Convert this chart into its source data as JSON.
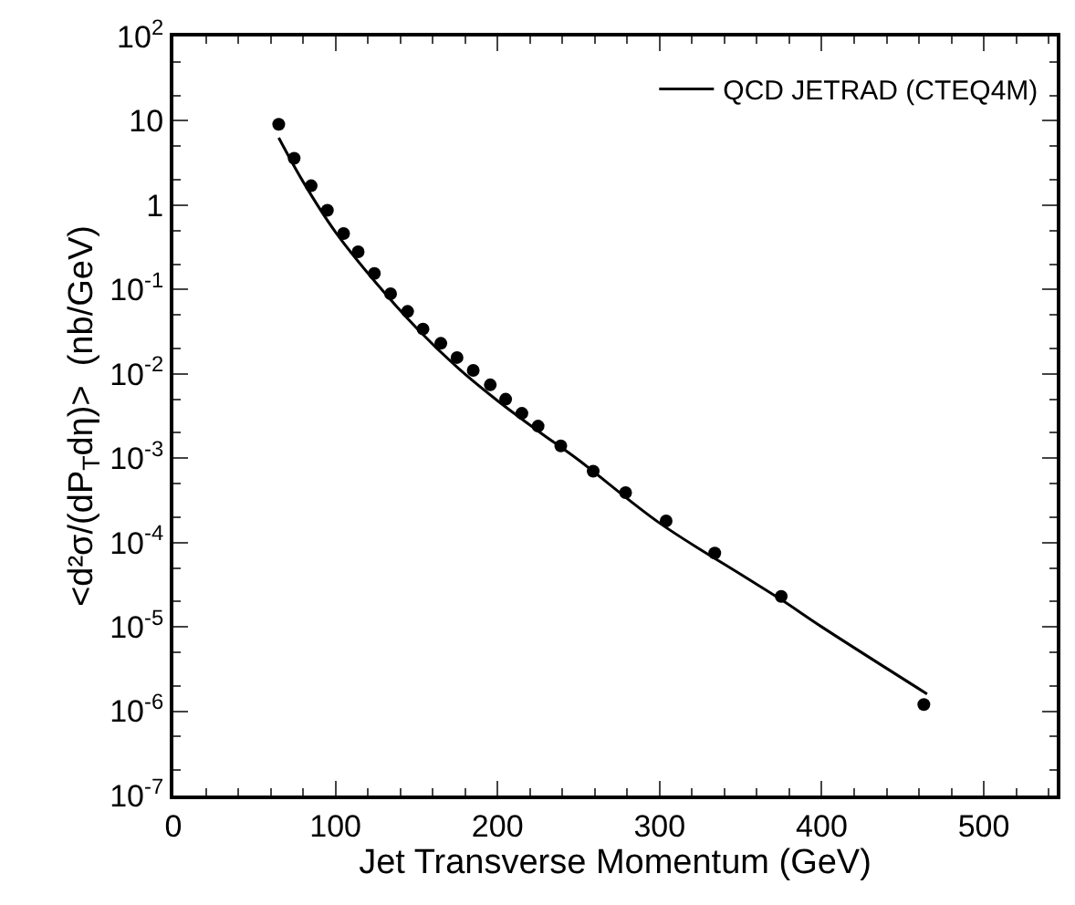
{
  "chart_data": {
    "type": "scatter",
    "xlabel": "Jet Transverse Momentum (GeV)",
    "ylabel": "<d²σ/(dP$_{T}$dη)>  (nb/GeV)",
    "series": [
      {
        "color": "#000000",
        "marker": "circle",
        "x": [
          65,
          74.5,
          85,
          95,
          105,
          114,
          124,
          134,
          144.5,
          154,
          165,
          175,
          185,
          195.5,
          205,
          215,
          225,
          239,
          259,
          279,
          304,
          334,
          375,
          463
        ],
        "values": [
          9.1,
          3.6,
          1.7,
          0.87,
          0.46,
          0.28,
          0.155,
          0.089,
          0.055,
          0.034,
          0.023,
          0.0156,
          0.011,
          0.0074,
          0.005,
          0.0034,
          0.0024,
          0.0014,
          0.0007,
          0.00039,
          0.00018,
          7.5e-05,
          2.3e-05,
          1.2e-06
        ]
      },
      {
        "type": "line",
        "name": "QCD JETRAD (CTEQ4M)",
        "color": "#000000",
        "line_style": "solid",
        "x": [
          65,
          80,
          100,
          125,
          150,
          175,
          200,
          225,
          250,
          300,
          350,
          375,
          400,
          465
        ],
        "values": [
          6.3,
          1.9,
          0.48,
          0.12,
          0.035,
          0.012,
          0.0048,
          0.0021,
          0.00095,
          0.00017,
          4.2e-05,
          2.1e-05,
          1e-05,
          1.6e-06
        ]
      }
    ],
    "log": "y",
    "xlim": [
      0,
      545
    ],
    "xticks": [
      0,
      100,
      200,
      300,
      400,
      500
    ],
    "ylim": [
      1e-07,
      100
    ],
    "yticks": [
      {
        "value": 1e-07,
        "label": "10$^{-7}$"
      },
      {
        "value": 1e-06,
        "label": "10$^{-6}$"
      },
      {
        "value": 1e-05,
        "label": "10$^{-5}$"
      },
      {
        "value": 0.0001,
        "label": "10$^{-4}$"
      },
      {
        "value": 0.001,
        "label": "10$^{-3}$"
      },
      {
        "value": 0.01,
        "label": "10$^{-2}$"
      },
      {
        "value": 0.1,
        "label": "10$^{-1}$"
      },
      1,
      10,
      {
        "value": 100,
        "label": "10$^{2}$"
      }
    ],
    "legend": "top right"
  }
}
